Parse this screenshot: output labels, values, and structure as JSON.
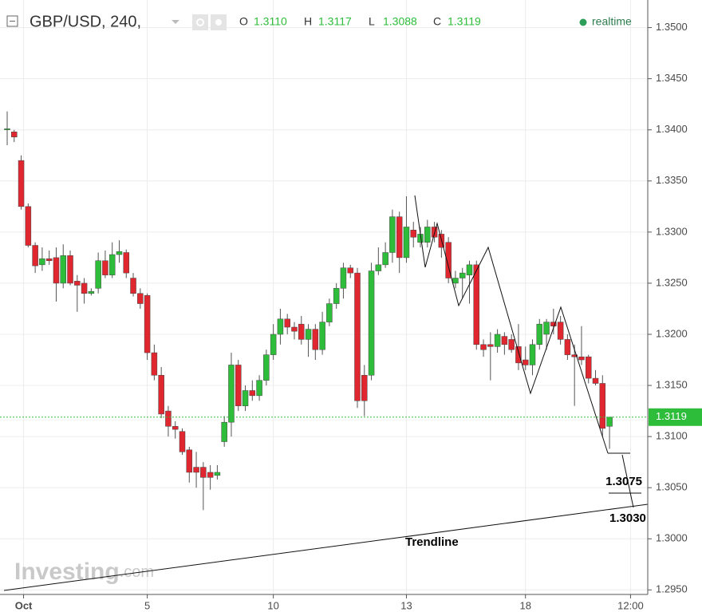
{
  "chart_data": {
    "type": "candlestick",
    "symbol": "GBP/USD, 240,",
    "header_ohlc": [
      {
        "label": "O",
        "value": "1.3110"
      },
      {
        "label": "H",
        "value": "1.3117"
      },
      {
        "label": "L",
        "value": "1.3088"
      },
      {
        "label": "C",
        "value": "1.3119"
      }
    ],
    "status": "realtime",
    "watermark": [
      "Investing",
      ".com"
    ],
    "annotations": [
      "1.3075",
      "1.3030",
      "Trendline"
    ],
    "up_color": "#2ebd3a",
    "down_color": "#e0262e",
    "price_marker": 1.3119,
    "price_marker_color": "#2ebd3a",
    "grid": true,
    "ylim": [
      1.2944,
      1.3527
    ],
    "yticks": [
      {
        "value": 1.295,
        "label": "1.2950"
      },
      {
        "value": 1.3,
        "label": "1.3000"
      },
      {
        "value": 1.305,
        "label": "1.3050"
      },
      {
        "value": 1.31,
        "label": "1.3100"
      },
      {
        "value": 1.315,
        "label": "1.3150"
      },
      {
        "value": 1.32,
        "label": "1.3200"
      },
      {
        "value": 1.325,
        "label": "1.3250"
      },
      {
        "value": 1.33,
        "label": "1.3300"
      },
      {
        "value": 1.335,
        "label": "1.3350"
      },
      {
        "value": 1.34,
        "label": "1.3400"
      },
      {
        "value": 1.345,
        "label": "1.3450"
      },
      {
        "value": 1.35,
        "label": "1.3500"
      }
    ],
    "categories": [
      null,
      null,
      "Oct",
      null,
      null,
      null,
      null,
      null,
      null,
      null,
      null,
      null,
      null,
      null,
      null,
      null,
      null,
      null,
      null,
      null,
      "5",
      null,
      null,
      null,
      null,
      null,
      null,
      null,
      null,
      null,
      null,
      null,
      null,
      null,
      null,
      null,
      null,
      null,
      "10",
      null,
      null,
      null,
      null,
      null,
      null,
      null,
      null,
      null,
      null,
      null,
      null,
      null,
      null,
      null,
      null,
      null,
      null,
      "13",
      null,
      null,
      null,
      null,
      null,
      null,
      null,
      null,
      null,
      null,
      null,
      null,
      null,
      null,
      null,
      null,
      "18",
      null,
      null,
      null,
      null,
      null,
      null,
      null,
      null,
      null,
      null,
      null,
      null,
      null,
      null,
      "12:00"
    ],
    "open": [
      1.34,
      1.3398,
      1.337,
      1.3325,
      1.3287,
      1.3268,
      1.3274,
      1.3275,
      1.325,
      1.3277,
      1.3252,
      1.325,
      1.324,
      1.3245,
      1.3272,
      1.3258,
      1.3278,
      1.328,
      1.3255,
      1.324,
      1.3238,
      1.3182,
      1.316,
      1.3125,
      1.311,
      1.3105,
      1.3087,
      1.307,
      1.307,
      1.3065,
      1.3062,
      1.3095,
      1.3114,
      1.317,
      1.313,
      1.3145,
      1.314,
      1.3155,
      1.318,
      1.32,
      1.3215,
      1.3207,
      1.321,
      1.3195,
      1.3205,
      1.3185,
      1.3212,
      1.323,
      1.3245,
      1.3265,
      1.326,
      1.316,
      1.316,
      1.3262,
      1.3268,
      1.328,
      1.3315,
      1.3275,
      1.3302,
      1.329,
      1.329,
      1.3305,
      1.3298,
      1.329,
      1.325,
      1.3255,
      1.3258,
      1.3268,
      1.319,
      1.319,
      1.3188,
      1.3198,
      1.3195,
      1.3188,
      1.3175,
      1.317,
      1.319,
      1.32,
      1.3212,
      1.3212,
      1.3195,
      1.318,
      1.3178,
      1.3178,
      1.3157,
      1.3152,
      1.311,
      null,
      null,
      null
    ],
    "high": [
      1.3418,
      1.34,
      1.3375,
      1.3328,
      1.329,
      1.3285,
      1.3282,
      1.3285,
      1.3288,
      1.3282,
      1.3258,
      1.3255,
      1.3245,
      1.328,
      1.3282,
      1.329,
      1.3292,
      1.3283,
      1.326,
      1.3245,
      1.324,
      1.319,
      1.3168,
      1.313,
      1.3115,
      1.3108,
      1.309,
      1.3085,
      1.3075,
      1.3072,
      1.3072,
      1.312,
      1.3182,
      1.3175,
      1.315,
      1.3155,
      1.316,
      1.3185,
      1.321,
      1.3225,
      1.322,
      1.3212,
      1.3218,
      1.321,
      1.321,
      1.3222,
      1.3235,
      1.325,
      1.327,
      1.3268,
      1.3265,
      1.317,
      1.327,
      1.3285,
      1.329,
      1.3322,
      1.332,
      1.3335,
      1.331,
      1.3305,
      1.3312,
      1.331,
      1.3302,
      1.3295,
      1.3262,
      1.3265,
      1.3272,
      1.3272,
      1.3195,
      1.3202,
      1.3205,
      1.3202,
      1.32,
      1.321,
      1.3188,
      1.3195,
      1.3215,
      1.3215,
      1.3225,
      1.3218,
      1.32,
      1.319,
      1.3208,
      1.318,
      1.3165,
      1.316,
      1.3117,
      null,
      null,
      null
    ],
    "low": [
      1.3385,
      1.3388,
      1.3322,
      1.3285,
      1.326,
      1.3262,
      1.3268,
      1.3232,
      1.3245,
      1.3248,
      1.3222,
      1.323,
      1.3238,
      1.324,
      1.3255,
      1.3255,
      1.327,
      1.3255,
      1.3237,
      1.3225,
      1.3175,
      1.3155,
      1.3118,
      1.31,
      1.3098,
      1.3082,
      1.3055,
      1.305,
      1.3028,
      1.3048,
      1.3058,
      1.309,
      1.31,
      1.3125,
      1.3125,
      1.3135,
      1.3135,
      1.315,
      1.3175,
      1.319,
      1.32,
      1.3195,
      1.319,
      1.3178,
      1.3175,
      1.318,
      1.3208,
      1.3225,
      1.3235,
      1.3255,
      1.3128,
      1.312,
      1.3155,
      1.3258,
      1.3265,
      1.327,
      1.326,
      1.327,
      1.3285,
      1.3285,
      1.3285,
      1.329,
      1.3275,
      1.325,
      1.3245,
      1.3235,
      1.323,
      1.3185,
      1.3178,
      1.3155,
      1.3182,
      1.318,
      1.3182,
      1.3165,
      1.3165,
      1.316,
      1.3185,
      1.3185,
      1.32,
      1.319,
      1.3175,
      1.313,
      1.317,
      1.3152,
      1.315,
      1.31,
      1.3088,
      null,
      null,
      null
    ],
    "close": [
      1.3401,
      1.3393,
      1.3325,
      1.3287,
      1.3267,
      1.3274,
      1.3272,
      1.325,
      1.3277,
      1.325,
      1.3248,
      1.324,
      1.3242,
      1.3272,
      1.3258,
      1.3278,
      1.3281,
      1.326,
      1.324,
      1.323,
      1.3182,
      1.316,
      1.3122,
      1.311,
      1.3107,
      1.3085,
      1.3065,
      1.3065,
      1.306,
      1.306,
      1.3065,
      1.3114,
      1.317,
      1.313,
      1.3145,
      1.314,
      1.3155,
      1.318,
      1.32,
      1.3215,
      1.3207,
      1.3203,
      1.3195,
      1.3205,
      1.3185,
      1.3212,
      1.323,
      1.3245,
      1.3265,
      1.326,
      1.3135,
      1.3135,
      1.3262,
      1.3268,
      1.328,
      1.3315,
      1.3275,
      1.3305,
      1.3295,
      1.3298,
      1.3305,
      1.3295,
      1.3285,
      1.3255,
      1.3255,
      1.326,
      1.3268,
      1.319,
      1.3185,
      1.3188,
      1.32,
      1.319,
      1.3185,
      1.3172,
      1.317,
      1.319,
      1.321,
      1.3212,
      1.3208,
      1.3195,
      1.318,
      1.3178,
      1.3175,
      1.3157,
      1.3152,
      1.3108,
      1.3119,
      null,
      null,
      null
    ]
  }
}
